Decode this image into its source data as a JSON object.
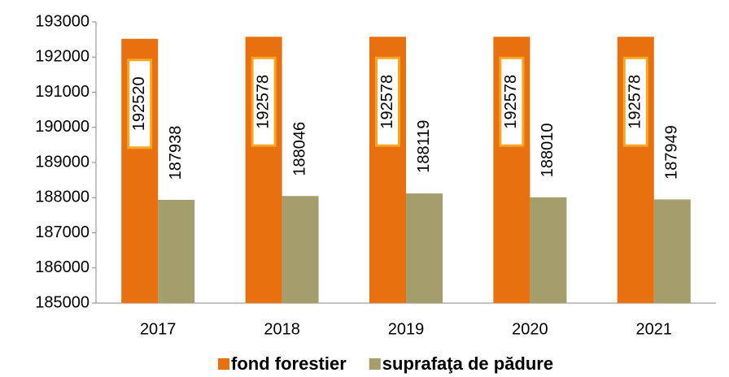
{
  "chart_data": {
    "type": "bar",
    "categories": [
      "2017",
      "2018",
      "2019",
      "2020",
      "2021"
    ],
    "series": [
      {
        "name": "fond forestier",
        "color": "#e8700f",
        "values": [
          192520,
          192578,
          192578,
          192578,
          192578
        ]
      },
      {
        "name": "suprafaţa de pădure",
        "color": "#a39e6c",
        "values": [
          187938,
          188046,
          188119,
          188010,
          187949
        ]
      }
    ],
    "ylim": [
      185000,
      193000
    ],
    "yticks": [
      185000,
      186000,
      187000,
      188000,
      189000,
      190000,
      191000,
      192000,
      193000
    ],
    "grid": false,
    "legend": "bottom"
  }
}
